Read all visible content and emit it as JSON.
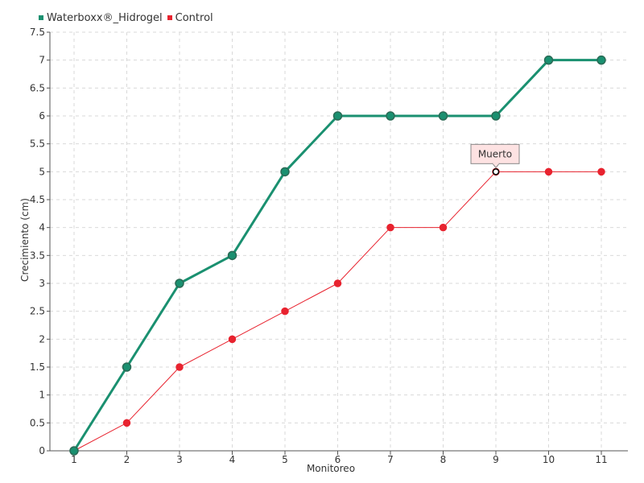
{
  "chart_data": {
    "type": "line",
    "categories": [
      "1",
      "2",
      "3",
      "4",
      "5",
      "6",
      "7",
      "8",
      "9",
      "10",
      "11"
    ],
    "series": [
      {
        "name": "Waterboxx®_Hidrogel",
        "color": "#1a9070",
        "values": [
          0,
          1.5,
          3,
          3.5,
          5,
          6,
          6,
          6,
          6,
          7,
          7
        ]
      },
      {
        "name": "Control",
        "color": "#e8232f",
        "values": [
          0,
          0.5,
          1.5,
          2,
          2.5,
          3,
          4,
          4,
          5,
          5,
          5
        ]
      }
    ],
    "xlabel": "Monitoreo",
    "ylabel": "Crecimiento (cm)",
    "ylim": [
      0,
      7.5
    ],
    "yticks": [
      "0",
      "0.5",
      "1",
      "1.5",
      "2",
      "2.5",
      "3",
      "3.5",
      "4",
      "4.5",
      "5",
      "5.5",
      "6",
      "6.5",
      "7",
      "7.5"
    ],
    "grid": true,
    "legend_position": "top-left",
    "annotation": {
      "text": "Muerto",
      "series": "Control",
      "category": "9",
      "value": 5
    }
  }
}
